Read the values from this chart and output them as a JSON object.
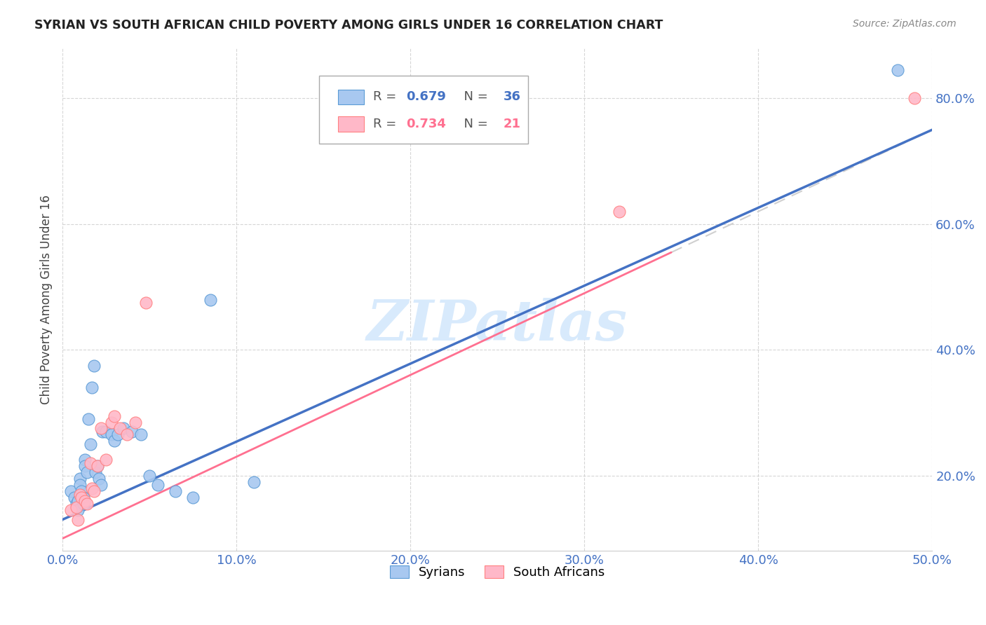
{
  "title": "SYRIAN VS SOUTH AFRICAN CHILD POVERTY AMONG GIRLS UNDER 16 CORRELATION CHART",
  "source": "Source: ZipAtlas.com",
  "ylabel": "Child Poverty Among Girls Under 16",
  "xlim": [
    0.0,
    0.5
  ],
  "ylim": [
    0.08,
    0.88
  ],
  "xticks": [
    0.0,
    0.1,
    0.2,
    0.3,
    0.4,
    0.5
  ],
  "yticks": [
    0.2,
    0.4,
    0.6,
    0.8
  ],
  "syrians_x": [
    0.005,
    0.007,
    0.008,
    0.009,
    0.009,
    0.01,
    0.01,
    0.011,
    0.012,
    0.012,
    0.013,
    0.013,
    0.014,
    0.015,
    0.016,
    0.017,
    0.018,
    0.019,
    0.02,
    0.021,
    0.022,
    0.023,
    0.025,
    0.028,
    0.03,
    0.032,
    0.035,
    0.04,
    0.045,
    0.05,
    0.055,
    0.065,
    0.075,
    0.085,
    0.11,
    0.48
  ],
  "syrians_y": [
    0.175,
    0.165,
    0.155,
    0.16,
    0.145,
    0.195,
    0.185,
    0.175,
    0.165,
    0.155,
    0.225,
    0.215,
    0.205,
    0.29,
    0.25,
    0.34,
    0.375,
    0.205,
    0.215,
    0.195,
    0.185,
    0.27,
    0.27,
    0.265,
    0.255,
    0.265,
    0.275,
    0.27,
    0.265,
    0.2,
    0.185,
    0.175,
    0.165,
    0.48,
    0.19,
    0.845
  ],
  "sa_x": [
    0.005,
    0.008,
    0.009,
    0.01,
    0.011,
    0.013,
    0.014,
    0.016,
    0.017,
    0.018,
    0.02,
    0.022,
    0.025,
    0.028,
    0.03,
    0.033,
    0.037,
    0.042,
    0.048,
    0.32,
    0.49
  ],
  "sa_y": [
    0.145,
    0.15,
    0.13,
    0.17,
    0.165,
    0.16,
    0.155,
    0.22,
    0.18,
    0.175,
    0.215,
    0.275,
    0.225,
    0.285,
    0.295,
    0.275,
    0.265,
    0.285,
    0.475,
    0.62,
    0.8
  ],
  "blue_color": "#A8C8F0",
  "blue_edge_color": "#5B9BD5",
  "blue_line_color": "#4472C4",
  "pink_color": "#FFB8C8",
  "pink_edge_color": "#FF8080",
  "pink_line_color": "#FF7090",
  "dashed_line_color": "#D0D0D0",
  "grid_color": "#CCCCCC",
  "axis_color": "#4472C4",
  "watermark_color": "#D8EAFC",
  "background_color": "#FFFFFF",
  "syrians_label": "Syrians",
  "sa_label": "South Africans",
  "blue_line_end_x": 0.5,
  "pink_line_solid_end_x": 0.35,
  "pink_line_dashed_end_x": 0.5
}
